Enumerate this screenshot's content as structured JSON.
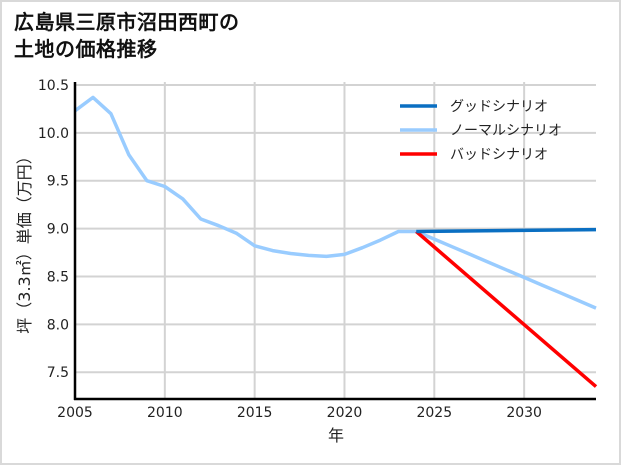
{
  "title_line1": "広島県三原市沼田西町の",
  "title_line2": "土地の価格推移",
  "chart_data": {
    "type": "line",
    "title": "広島県三原市沼田西町の土地の価格推移",
    "xlabel": "年",
    "ylabel": "坪（3.3㎡）単価（万円）",
    "xlim": [
      2005,
      2034
    ],
    "ylim": [
      7.22,
      10.5
    ],
    "xticks": [
      2005,
      2010,
      2015,
      2020,
      2025,
      2030
    ],
    "yticks": [
      7.5,
      8.0,
      8.5,
      9.0,
      9.5,
      10.0,
      10.5
    ],
    "ytick_labels": [
      "7.5",
      "8.0",
      "8.5",
      "9.0",
      "9.5",
      "10.0",
      "10.5"
    ],
    "grid": true,
    "legend_position": "upper right",
    "series": [
      {
        "name": "グッドシナリオ",
        "color": "#0a6fc2",
        "x": [
          2024,
          2034
        ],
        "values": [
          8.97,
          8.99
        ]
      },
      {
        "name": "ノーマルシナリオ",
        "color": "#99ccff",
        "x": [
          2005,
          2006,
          2007,
          2008,
          2009,
          2010,
          2011,
          2012,
          2013,
          2014,
          2015,
          2016,
          2017,
          2018,
          2019,
          2020,
          2021,
          2022,
          2023,
          2024,
          2025,
          2026,
          2027,
          2028,
          2029,
          2030,
          2031,
          2032,
          2033,
          2034
        ],
        "values": [
          10.23,
          10.37,
          10.2,
          9.77,
          9.5,
          9.44,
          9.31,
          9.1,
          9.03,
          8.95,
          8.82,
          8.77,
          8.74,
          8.72,
          8.71,
          8.73,
          8.8,
          8.88,
          8.97,
          8.97,
          8.89,
          8.81,
          8.73,
          8.65,
          8.57,
          8.49,
          8.41,
          8.33,
          8.25,
          8.17
        ]
      },
      {
        "name": "バッドシナリオ",
        "color": "#ff0000",
        "x": [
          2024,
          2034
        ],
        "values": [
          8.97,
          7.35
        ]
      }
    ]
  }
}
